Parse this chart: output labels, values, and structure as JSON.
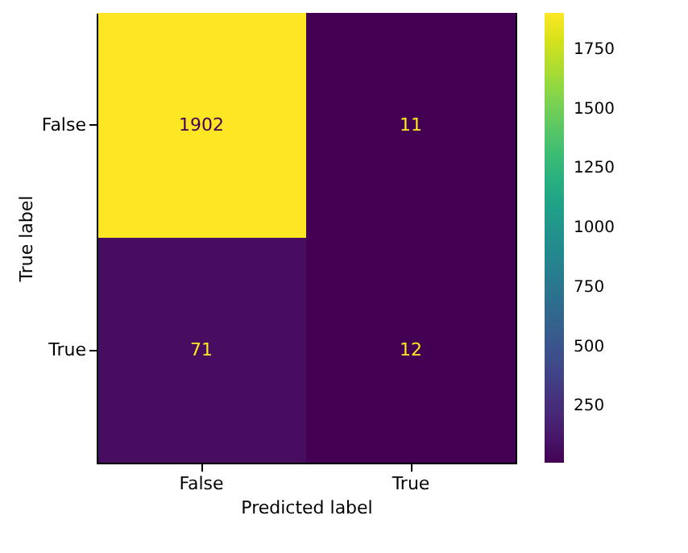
{
  "chart_data": {
    "type": "heatmap",
    "xlabel": "Predicted label",
    "ylabel": "True label",
    "categories": [
      "False",
      "True"
    ],
    "y_categories": [
      "False",
      "True"
    ],
    "cells": [
      [
        1902,
        11
      ],
      [
        71,
        12
      ]
    ],
    "clim": [
      11,
      1902
    ],
    "cticks": [
      250,
      500,
      750,
      1000,
      1250,
      1500,
      1750
    ],
    "data_labels": true,
    "grid": false
  }
}
